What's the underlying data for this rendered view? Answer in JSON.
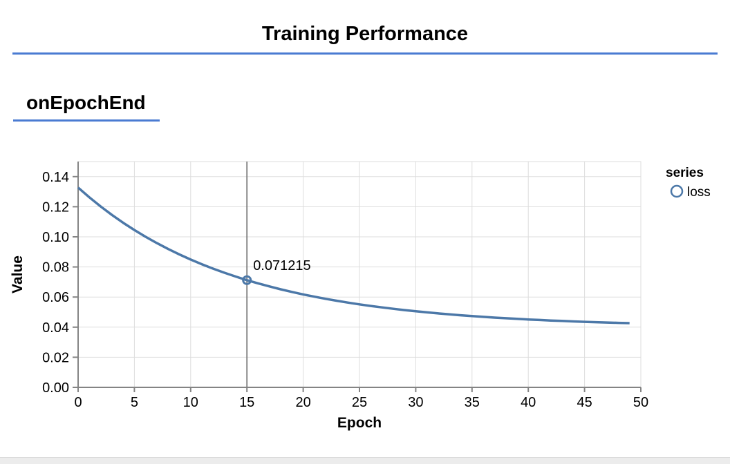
{
  "page": {
    "title": "Training Performance",
    "section_label": "onEpochEnd"
  },
  "colors": {
    "heading_underline": "#4a7bd2",
    "series_line": "#4c78a8",
    "rule": "#7d7d7d",
    "axis_domain": "#848484",
    "grid": "#dddddd",
    "view_border": "#dddddd",
    "text": "#000000"
  },
  "legend": {
    "title": "series",
    "items": [
      {
        "label": "loss",
        "symbol": "circle-icon",
        "color": "#4c78a8"
      }
    ]
  },
  "tooltip": {
    "epoch": 15,
    "value_label": "0.071215"
  },
  "chart_data": {
    "type": "line",
    "title": "",
    "xlabel": "Epoch",
    "ylabel": "Value",
    "xlim": [
      0,
      50
    ],
    "ylim": [
      0,
      0.15
    ],
    "xticks": [
      0,
      5,
      10,
      15,
      20,
      25,
      30,
      35,
      40,
      45,
      50
    ],
    "yticks": [
      0,
      0.02,
      0.04,
      0.06,
      0.08,
      0.1,
      0.12,
      0.14
    ],
    "grid": true,
    "legend_position": "right",
    "series": [
      {
        "name": "loss",
        "x": [
          0,
          1,
          2,
          3,
          4,
          5,
          6,
          7,
          8,
          9,
          10,
          11,
          12,
          13,
          14,
          15,
          16,
          17,
          18,
          19,
          20,
          21,
          22,
          23,
          24,
          25,
          26,
          27,
          28,
          29,
          30,
          31,
          32,
          33,
          34,
          35,
          36,
          37,
          38,
          39,
          40,
          41,
          42,
          43,
          44,
          45,
          46,
          47,
          48,
          49
        ],
        "y": [
          0.1327,
          0.12622,
          0.120194,
          0.114588,
          0.109374,
          0.104524,
          0.100014,
          0.095818,
          0.091917,
          0.088287,
          0.084912,
          0.081773,
          0.078853,
          0.076137,
          0.073611,
          0.071215,
          0.069077,
          0.067044,
          0.065154,
          0.063395,
          0.06176,
          0.060239,
          0.058824,
          0.057509,
          0.056285,
          0.055146,
          0.054088,
          0.053103,
          0.052187,
          0.051335,
          0.050542,
          0.049806,
          0.04912,
          0.048483,
          0.04789,
          0.047338,
          0.046825,
          0.046348,
          0.045904,
          0.045491,
          0.045108,
          0.04475,
          0.044418,
          0.04411,
          0.043822,
          0.043555,
          0.043307,
          0.043076,
          0.042861,
          0.042661
        ]
      }
    ],
    "highlight": {
      "x": 15,
      "y": 0.071215,
      "label": "0.071215",
      "rule": true
    }
  }
}
